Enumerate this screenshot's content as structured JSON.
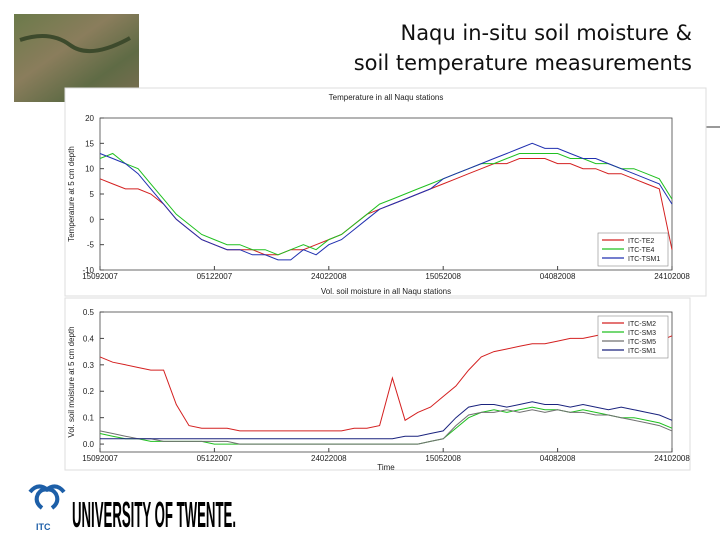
{
  "header": {
    "title_lines": [
      "Naqu in-situ soil moisture &",
      "soil temperature  measurements"
    ]
  },
  "logo": {
    "abbr": "ITC",
    "name": "UNIVERSITY OF TWENTE."
  },
  "chart_data": [
    {
      "type": "line",
      "title": "Temperature in all Naqu stations",
      "ylabel": "Temperature at 5 cm depth",
      "categories": [
        "15092007",
        null,
        null,
        null,
        null,
        null,
        null,
        null,
        null,
        "05122007",
        null,
        null,
        null,
        null,
        null,
        null,
        null,
        null,
        "24022008",
        null,
        null,
        null,
        null,
        null,
        null,
        null,
        null,
        "15052008",
        null,
        null,
        null,
        null,
        null,
        null,
        null,
        null,
        "04082008",
        null,
        null,
        null,
        null,
        null,
        null,
        null,
        null,
        "24102008"
      ],
      "ylim": [
        -10,
        20
      ],
      "yticks": [
        -10,
        -5,
        0,
        5,
        10,
        15,
        20
      ],
      "legend": "lower right",
      "series": [
        {
          "name": "ITC-TE2",
          "color": "#d42020",
          "values": [
            8,
            7,
            6,
            6,
            5,
            3,
            0,
            -2,
            -4,
            -5,
            -6,
            -6,
            -6,
            -7,
            -7,
            -6,
            -6,
            -5,
            -4,
            -3,
            -1,
            1,
            2,
            3,
            4,
            5,
            6,
            7,
            8,
            9,
            10,
            11,
            11,
            12,
            12,
            12,
            11,
            11,
            10,
            10,
            9,
            9,
            8,
            7,
            6,
            -6
          ]
        },
        {
          "name": "ITC-TE4",
          "color": "#20c020",
          "values": [
            12,
            13,
            11,
            10,
            7,
            4,
            1,
            -1,
            -3,
            -4,
            -5,
            -5,
            -6,
            -6,
            -7,
            -6,
            -5,
            -6,
            -4,
            -3,
            -1,
            1,
            3,
            4,
            5,
            6,
            7,
            8,
            9,
            10,
            11,
            11,
            12,
            13,
            13,
            13,
            13,
            12,
            12,
            11,
            11,
            10,
            10,
            9,
            8,
            4
          ]
        },
        {
          "name": "ITC-TSM1",
          "color": "#2030b0",
          "values": [
            13,
            12,
            11,
            9,
            6,
            3,
            0,
            -2,
            -4,
            -5,
            -6,
            -6,
            -7,
            -7,
            -8,
            -8,
            -6,
            -7,
            -5,
            -4,
            -2,
            0,
            2,
            3,
            4,
            5,
            6,
            8,
            9,
            10,
            11,
            12,
            13,
            14,
            15,
            14,
            14,
            13,
            12,
            12,
            11,
            10,
            9,
            8,
            7,
            3
          ]
        }
      ]
    },
    {
      "type": "line",
      "title": "Vol. soil moisture in all Naqu stations",
      "ylabel": "Vol. soil moisture at 5 cm depth",
      "xlabel": "Time",
      "categories": [
        "15092007",
        null,
        null,
        null,
        null,
        null,
        null,
        null,
        null,
        "05122007",
        null,
        null,
        null,
        null,
        null,
        null,
        null,
        null,
        "24022008",
        null,
        null,
        null,
        null,
        null,
        null,
        null,
        null,
        "15052008",
        null,
        null,
        null,
        null,
        null,
        null,
        null,
        null,
        "04082008",
        null,
        null,
        null,
        null,
        null,
        null,
        null,
        null,
        "24102008"
      ],
      "ylim": [
        -0.03,
        0.5
      ],
      "yticks": [
        {
          "value": 0,
          "label": "0.0"
        },
        0.1,
        0.2,
        0.3,
        0.4,
        0.5
      ],
      "legend": "upper right",
      "series": [
        {
          "name": "ITC-SM2",
          "color": "#d42020",
          "values": [
            0.33,
            0.31,
            0.3,
            0.29,
            0.28,
            0.28,
            0.15,
            0.07,
            0.06,
            0.06,
            0.06,
            0.05,
            0.05,
            0.05,
            0.05,
            0.05,
            0.05,
            0.05,
            0.05,
            0.05,
            0.06,
            0.06,
            0.07,
            0.25,
            0.09,
            0.12,
            0.14,
            0.18,
            0.22,
            0.28,
            0.33,
            0.35,
            0.36,
            0.37,
            0.38,
            0.38,
            0.39,
            0.4,
            0.4,
            0.41,
            0.42,
            0.41,
            0.4,
            0.41,
            0.39,
            0.41
          ]
        },
        {
          "name": "ITC-SM3",
          "color": "#20c020",
          "values": [
            0.04,
            0.03,
            0.02,
            0.02,
            0.01,
            0.01,
            0.01,
            0.01,
            0.01,
            0,
            0,
            0,
            0,
            0,
            0,
            0,
            0,
            0,
            0,
            0,
            0,
            0,
            0,
            0,
            0,
            0,
            0.01,
            0.02,
            0.06,
            0.1,
            0.12,
            0.13,
            0.12,
            0.13,
            0.14,
            0.13,
            0.13,
            0.12,
            0.13,
            0.12,
            0.11,
            0.1,
            0.1,
            0.09,
            0.08,
            0.06
          ]
        },
        {
          "name": "ITC-SM5",
          "color": "#707070",
          "values": [
            0.05,
            0.04,
            0.03,
            0.02,
            0.02,
            0.01,
            0.01,
            0.01,
            0.01,
            0.01,
            0.01,
            0,
            0,
            0,
            0,
            0,
            0,
            0,
            0,
            0,
            0,
            0,
            0,
            0,
            0,
            0,
            0.01,
            0.02,
            0.07,
            0.11,
            0.12,
            0.12,
            0.13,
            0.12,
            0.13,
            0.12,
            0.13,
            0.12,
            0.12,
            0.11,
            0.11,
            0.1,
            0.09,
            0.08,
            0.07,
            0.05
          ]
        },
        {
          "name": "ITC-SM1",
          "color": "#1a237e",
          "values": [
            0.02,
            0.02,
            0.02,
            0.02,
            0.02,
            0.02,
            0.02,
            0.02,
            0.02,
            0.02,
            0.02,
            0.02,
            0.02,
            0.02,
            0.02,
            0.02,
            0.02,
            0.02,
            0.02,
            0.02,
            0.02,
            0.02,
            0.02,
            0.02,
            0.03,
            0.03,
            0.04,
            0.05,
            0.1,
            0.14,
            0.15,
            0.15,
            0.14,
            0.15,
            0.16,
            0.15,
            0.15,
            0.14,
            0.15,
            0.14,
            0.13,
            0.14,
            0.13,
            0.12,
            0.11,
            0.09
          ]
        }
      ]
    }
  ]
}
